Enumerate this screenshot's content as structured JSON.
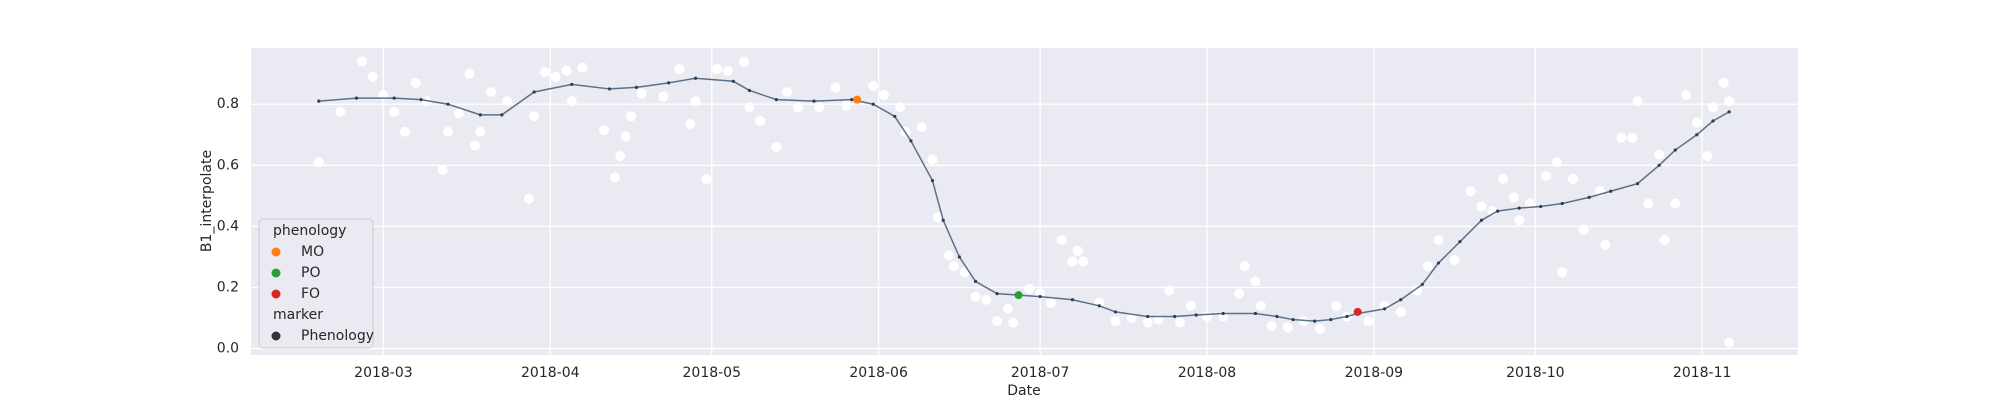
{
  "chart_data": {
    "type": "line",
    "xlabel": "Date",
    "ylabel": "B1_interpolate",
    "xlim": [
      35.4,
      322.8
    ],
    "ylim": [
      -0.021,
      0.984
    ],
    "xticks": [
      {
        "value": 60,
        "label": "2018-03"
      },
      {
        "value": 91,
        "label": "2018-04"
      },
      {
        "value": 121,
        "label": "2018-05"
      },
      {
        "value": 152,
        "label": "2018-06"
      },
      {
        "value": 182,
        "label": "2018-07"
      },
      {
        "value": 213,
        "label": "2018-08"
      },
      {
        "value": 244,
        "label": "2018-09"
      },
      {
        "value": 274,
        "label": "2018-10"
      },
      {
        "value": 305,
        "label": "2018-11"
      }
    ],
    "yticks": [
      {
        "value": 0,
        "label": "0.0"
      },
      0.2,
      0.4,
      0.6,
      0.8
    ],
    "grid": true,
    "legend_position": "lower left",
    "raw": {
      "color": "#ffffff",
      "x": [
        48,
        52,
        56,
        58,
        60,
        62,
        64,
        66,
        68,
        71,
        72,
        74,
        76,
        77,
        78,
        80,
        83,
        87,
        88,
        90,
        92,
        94,
        95,
        97,
        101,
        103,
        104,
        105,
        106,
        108,
        112,
        115,
        117,
        118,
        120,
        122,
        124,
        127,
        128,
        130,
        133,
        135,
        137,
        141,
        144,
        146,
        151,
        153,
        156,
        157,
        160,
        162,
        163,
        165,
        166,
        168,
        170,
        172,
        174,
        176,
        177,
        180,
        182,
        184,
        186,
        188,
        189,
        190,
        193,
        196,
        199,
        202,
        204,
        206,
        208,
        210,
        213,
        216,
        219,
        220,
        222,
        223,
        225,
        228,
        231,
        234,
        237,
        239,
        243,
        246,
        249,
        252,
        254,
        256,
        259,
        262,
        264,
        266,
        268,
        270,
        271,
        273,
        276,
        278,
        279,
        281,
        283,
        286,
        287,
        290,
        292,
        293,
        295,
        297,
        298,
        300,
        302,
        304,
        306,
        307,
        309,
        310,
        310
      ],
      "values": [
        0.61,
        0.775,
        0.94,
        0.89,
        0.83,
        0.775,
        0.71,
        0.87,
        0.81,
        0.585,
        0.71,
        0.77,
        0.9,
        0.665,
        0.71,
        0.84,
        0.81,
        0.49,
        0.76,
        0.905,
        0.89,
        0.91,
        0.81,
        0.92,
        0.715,
        0.56,
        0.63,
        0.695,
        0.76,
        0.835,
        0.825,
        0.915,
        0.735,
        0.81,
        0.555,
        0.915,
        0.91,
        0.94,
        0.79,
        0.745,
        0.66,
        0.84,
        0.79,
        0.79,
        0.855,
        0.795,
        0.86,
        0.83,
        0.79,
        0.71,
        0.725,
        0.62,
        0.43,
        0.305,
        0.27,
        0.25,
        0.17,
        0.16,
        0.09,
        0.13,
        0.085,
        0.195,
        0.18,
        0.15,
        0.355,
        0.285,
        0.32,
        0.285,
        0.15,
        0.09,
        0.1,
        0.085,
        0.095,
        0.19,
        0.085,
        0.14,
        0.105,
        0.105,
        0.18,
        0.27,
        0.22,
        0.14,
        0.075,
        0.07,
        0.09,
        0.065,
        0.14,
        0.105,
        0.09,
        0.14,
        0.12,
        0.19,
        0.27,
        0.355,
        0.29,
        0.515,
        0.465,
        0.45,
        0.555,
        0.495,
        0.42,
        0.475,
        0.565,
        0.61,
        0.25,
        0.555,
        0.39,
        0.515,
        0.34,
        0.69,
        0.69,
        0.81,
        0.475,
        0.635,
        0.355,
        0.475,
        0.83,
        0.74,
        0.63,
        0.79,
        0.87,
        0.81,
        0.02
      ]
    },
    "smoothed": {
      "color": "#5a7189",
      "x": [
        48,
        55,
        62,
        67,
        72,
        78,
        82,
        88,
        95,
        102,
        107,
        113,
        118,
        125,
        128,
        133,
        140,
        147,
        151,
        155,
        158,
        162,
        164,
        167,
        170,
        174,
        178,
        182,
        188,
        193,
        196,
        202,
        207,
        211,
        216,
        222,
        226,
        229,
        233,
        236,
        239,
        241,
        246,
        249,
        253,
        256,
        260,
        264,
        267,
        271,
        275,
        279,
        284,
        288,
        293,
        297,
        300,
        304,
        307,
        310
      ],
      "values": [
        0.81,
        0.82,
        0.82,
        0.815,
        0.8,
        0.765,
        0.765,
        0.84,
        0.865,
        0.85,
        0.855,
        0.87,
        0.885,
        0.875,
        0.845,
        0.815,
        0.81,
        0.815,
        0.8,
        0.76,
        0.68,
        0.55,
        0.42,
        0.3,
        0.22,
        0.18,
        0.175,
        0.17,
        0.16,
        0.14,
        0.12,
        0.105,
        0.105,
        0.11,
        0.115,
        0.115,
        0.105,
        0.095,
        0.09,
        0.095,
        0.105,
        0.115,
        0.13,
        0.16,
        0.21,
        0.28,
        0.35,
        0.42,
        0.45,
        0.46,
        0.465,
        0.475,
        0.495,
        0.515,
        0.54,
        0.6,
        0.65,
        0.7,
        0.745,
        0.775
      ]
    },
    "phenology": {
      "title": "phenology",
      "series": [
        {
          "name": "MO",
          "color": "#ff7f0e",
          "x": [
            148
          ],
          "values": [
            0.815
          ]
        },
        {
          "name": "PO",
          "color": "#2ca02c",
          "x": [
            178
          ],
          "values": [
            0.175
          ]
        },
        {
          "name": "FO",
          "color": "#d62728",
          "x": [
            241
          ],
          "values": [
            0.12
          ]
        }
      ]
    },
    "marker_legend": {
      "title": "marker",
      "color": "#333333",
      "entries": [
        "Phenology"
      ]
    }
  }
}
